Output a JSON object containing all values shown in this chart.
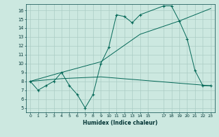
{
  "xlabel": "Humidex (Indice chaleur)",
  "background_color": "#cce8e0",
  "grid_color": "#aaccc4",
  "line_color": "#006655",
  "xlim": [
    -0.5,
    23.5
  ],
  "ylim": [
    4.5,
    16.7
  ],
  "yticks": [
    5,
    6,
    7,
    8,
    9,
    10,
    11,
    12,
    13,
    14,
    15,
    16
  ],
  "xtick_positions": [
    0,
    1,
    2,
    3,
    4,
    5,
    6,
    7,
    8,
    9,
    10,
    11,
    12,
    13,
    14,
    15,
    17,
    18,
    19,
    20,
    21,
    22,
    23
  ],
  "xtick_labels": [
    "0",
    "1",
    "2",
    "3",
    "4",
    "5",
    "6",
    "7",
    "8",
    "9",
    "10",
    "11",
    "12",
    "13",
    "14",
    "15",
    "17",
    "18",
    "19",
    "20",
    "21",
    "22",
    "23"
  ],
  "line1_x": [
    0,
    1,
    2,
    3,
    4,
    5,
    6,
    7,
    8,
    9,
    10,
    11,
    12,
    13,
    14,
    17,
    18,
    19,
    20,
    21,
    22,
    23
  ],
  "line1_y": [
    8.0,
    7.0,
    7.5,
    8.0,
    9.0,
    7.5,
    6.5,
    5.0,
    6.5,
    10.0,
    11.8,
    15.5,
    15.3,
    14.6,
    15.5,
    16.5,
    16.5,
    14.8,
    12.8,
    9.2,
    7.5,
    7.5
  ],
  "line2_x": [
    0,
    4,
    9,
    14,
    19,
    23
  ],
  "line2_y": [
    8.0,
    9.0,
    10.2,
    13.3,
    14.8,
    16.2
  ],
  "line3_x": [
    0,
    4,
    9,
    23
  ],
  "line3_y": [
    8.0,
    8.3,
    8.5,
    7.5
  ]
}
